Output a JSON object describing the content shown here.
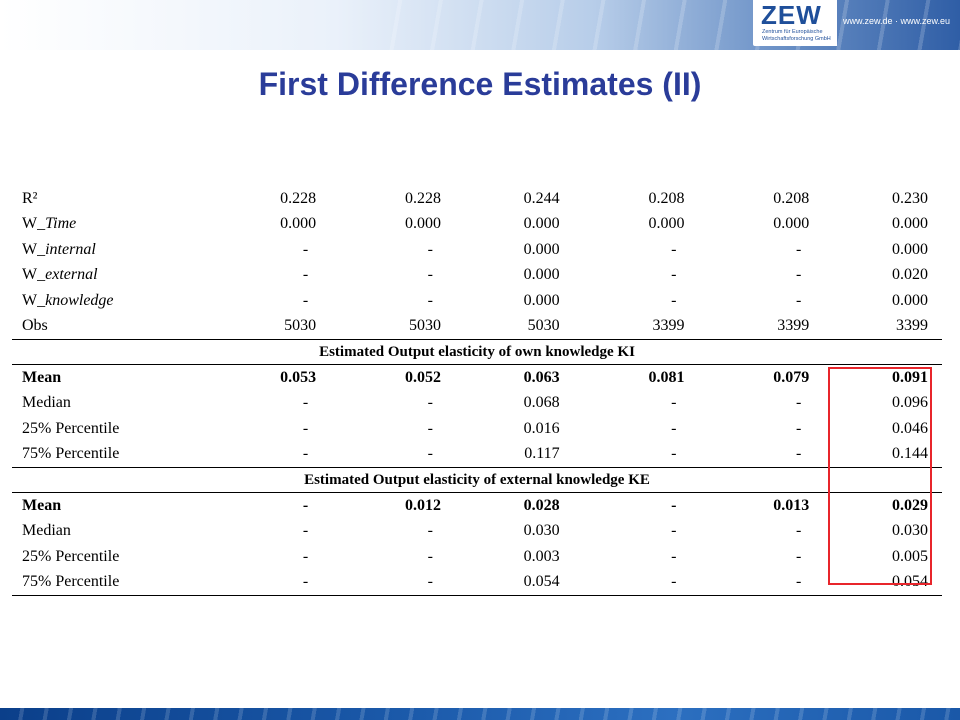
{
  "header": {
    "logo_text": "ZEW",
    "logo_sub_1": "Zentrum für Europäische",
    "logo_sub_2": "Wirtschaftsforschung GmbH",
    "url": "www.zew.de · www.zew.eu",
    "accent": "#1f4f9a"
  },
  "title": "First Difference Estimates (II)",
  "title_color": "#2a3c99",
  "highlight_color": "#e8252b",
  "table": {
    "stats_rows": [
      {
        "label_prefix": "R²",
        "label_ital": "",
        "values": [
          "0.228",
          "0.228",
          "0.244",
          "0.208",
          "0.208",
          "0.230"
        ]
      },
      {
        "label_prefix": "W_",
        "label_ital": "Time",
        "values": [
          "0.000",
          "0.000",
          "0.000",
          "0.000",
          "0.000",
          "0.000"
        ]
      },
      {
        "label_prefix": "W_",
        "label_ital": "internal",
        "values": [
          "-",
          "-",
          "0.000",
          "-",
          "-",
          "0.000"
        ]
      },
      {
        "label_prefix": "W_",
        "label_ital": "external",
        "values": [
          "-",
          "-",
          "0.000",
          "-",
          "-",
          "0.020"
        ]
      },
      {
        "label_prefix": "W_",
        "label_ital": "knowledge",
        "values": [
          "-",
          "-",
          "0.000",
          "-",
          "-",
          "0.000"
        ]
      },
      {
        "label_prefix": "Obs",
        "label_ital": "",
        "values": [
          "5030",
          "5030",
          "5030",
          "3399",
          "3399",
          "3399"
        ]
      }
    ],
    "section_ki": {
      "title": "Estimated Output elasticity of own knowledge KI",
      "rows": [
        {
          "label": "Mean",
          "bold": true,
          "values": [
            "0.053",
            "0.052",
            "0.063",
            "0.081",
            "0.079",
            "0.091"
          ]
        },
        {
          "label": "Median",
          "bold": false,
          "values": [
            "-",
            "-",
            "0.068",
            "-",
            "-",
            "0.096"
          ]
        },
        {
          "label": "25% Percentile",
          "bold": false,
          "values": [
            "-",
            "-",
            "0.016",
            "-",
            "-",
            "0.046"
          ]
        },
        {
          "label": "75% Percentile",
          "bold": false,
          "values": [
            "-",
            "-",
            "0.117",
            "-",
            "-",
            "0.144"
          ]
        }
      ]
    },
    "section_ke": {
      "title": "Estimated Output elasticity of external knowledge KE",
      "rows": [
        {
          "label": "Mean",
          "bold": true,
          "values": [
            "-",
            "0.012",
            "0.028",
            "-",
            "0.013",
            "0.029"
          ]
        },
        {
          "label": "Median",
          "bold": false,
          "values": [
            "-",
            "-",
            "0.030",
            "-",
            "-",
            "0.030"
          ]
        },
        {
          "label": "25% Percentile",
          "bold": false,
          "values": [
            "-",
            "-",
            "0.003",
            "-",
            "-",
            "0.005"
          ]
        },
        {
          "label": "75% Percentile",
          "bold": false,
          "values": [
            "-",
            "-",
            "0.054",
            "-",
            "-",
            "0.054"
          ]
        }
      ]
    }
  }
}
